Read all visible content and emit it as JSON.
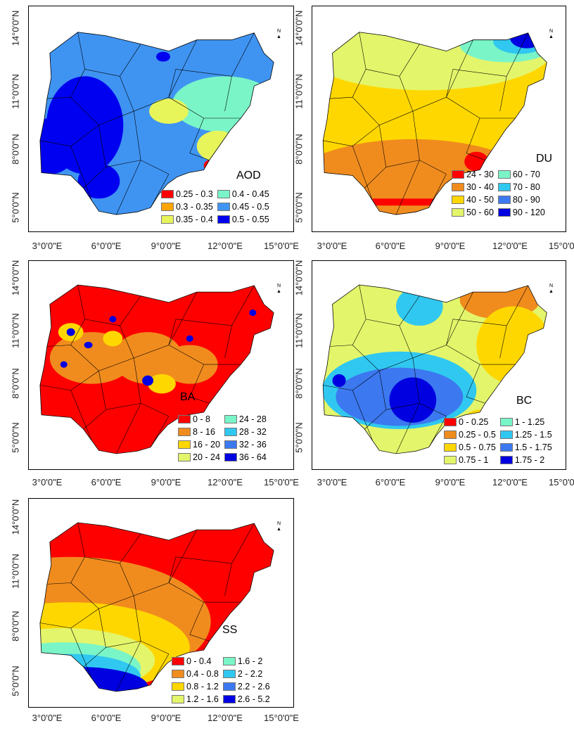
{
  "axes": {
    "lat_ticks": [
      "14°0'0\"N",
      "11°0'0\"N",
      "8°0'0\"N",
      "5°0'0\"N"
    ],
    "lon_ticks": [
      "3°0'0\"E",
      "6°0'0\"E",
      "9°0'0\"E",
      "12°0'0\"E",
      "15°0'0\"E"
    ]
  },
  "north_arrow": "N",
  "panels": [
    {
      "label": "AOD",
      "legend": [
        {
          "range": "0.25 - 0.3",
          "color": "#ff0000"
        },
        {
          "range": "0.4 - 0.45",
          "color": "#7af5c8"
        },
        {
          "range": "0.3 - 0.35",
          "color": "#ffa500"
        },
        {
          "range": "0.45 - 0.5",
          "color": "#3f94f2"
        },
        {
          "range": "0.35 - 0.4",
          "color": "#e8f55a"
        },
        {
          "range": "0.5 - 0.55",
          "color": "#0000f0"
        }
      ]
    },
    {
      "label": "DU",
      "legend": [
        {
          "range": "24 - 30",
          "color": "#ff0000"
        },
        {
          "range": "60 - 70",
          "color": "#7af5c8"
        },
        {
          "range": "30 - 40",
          "color": "#f08c1e"
        },
        {
          "range": "70 - 80",
          "color": "#30c8f0"
        },
        {
          "range": "40 - 50",
          "color": "#ffd700"
        },
        {
          "range": "80 - 90",
          "color": "#3c78f0"
        },
        {
          "range": "50 - 60",
          "color": "#e3f56a"
        },
        {
          "range": "90 - 120",
          "color": "#0000e0"
        }
      ]
    },
    {
      "label": "BA",
      "legend": [
        {
          "range": "0 - 8",
          "color": "#ff0000"
        },
        {
          "range": "24 - 28",
          "color": "#7af5c8"
        },
        {
          "range": "8 - 16",
          "color": "#f08c1e"
        },
        {
          "range": "28 - 32",
          "color": "#30c8f0"
        },
        {
          "range": "16 - 20",
          "color": "#ffd700"
        },
        {
          "range": "32 - 36",
          "color": "#3c78f0"
        },
        {
          "range": "20 - 24",
          "color": "#e3f56a"
        },
        {
          "range": "36 - 64",
          "color": "#0000e0"
        }
      ]
    },
    {
      "label": "BC",
      "legend": [
        {
          "range": "0 - 0.25",
          "color": "#ff0000"
        },
        {
          "range": "1 - 1.25",
          "color": "#7af5c8"
        },
        {
          "range": "0.25 - 0.5",
          "color": "#f08c1e"
        },
        {
          "range": "1.25 - 1.5",
          "color": "#30c8f0"
        },
        {
          "range": "0.5 - 0.75",
          "color": "#ffd700"
        },
        {
          "range": "1.5 - 1.75",
          "color": "#3c78f0"
        },
        {
          "range": "0.75 - 1",
          "color": "#e3f56a"
        },
        {
          "range": "1.75 - 2",
          "color": "#0000e0"
        }
      ]
    },
    {
      "label": "SS",
      "legend": [
        {
          "range": "0 - 0.4",
          "color": "#ff0000"
        },
        {
          "range": "1.6 - 2",
          "color": "#7af5c8"
        },
        {
          "range": "0.4 - 0.8",
          "color": "#f08c1e"
        },
        {
          "range": "2 - 2.2",
          "color": "#30c8f0"
        },
        {
          "range": "0.8 - 1.2",
          "color": "#ffd700"
        },
        {
          "range": "2.2 - 2.6",
          "color": "#3c78f0"
        },
        {
          "range": "1.2 - 1.6",
          "color": "#e3f56a"
        },
        {
          "range": "2.6 - 5.2",
          "color": "#0000e0"
        }
      ]
    }
  ]
}
